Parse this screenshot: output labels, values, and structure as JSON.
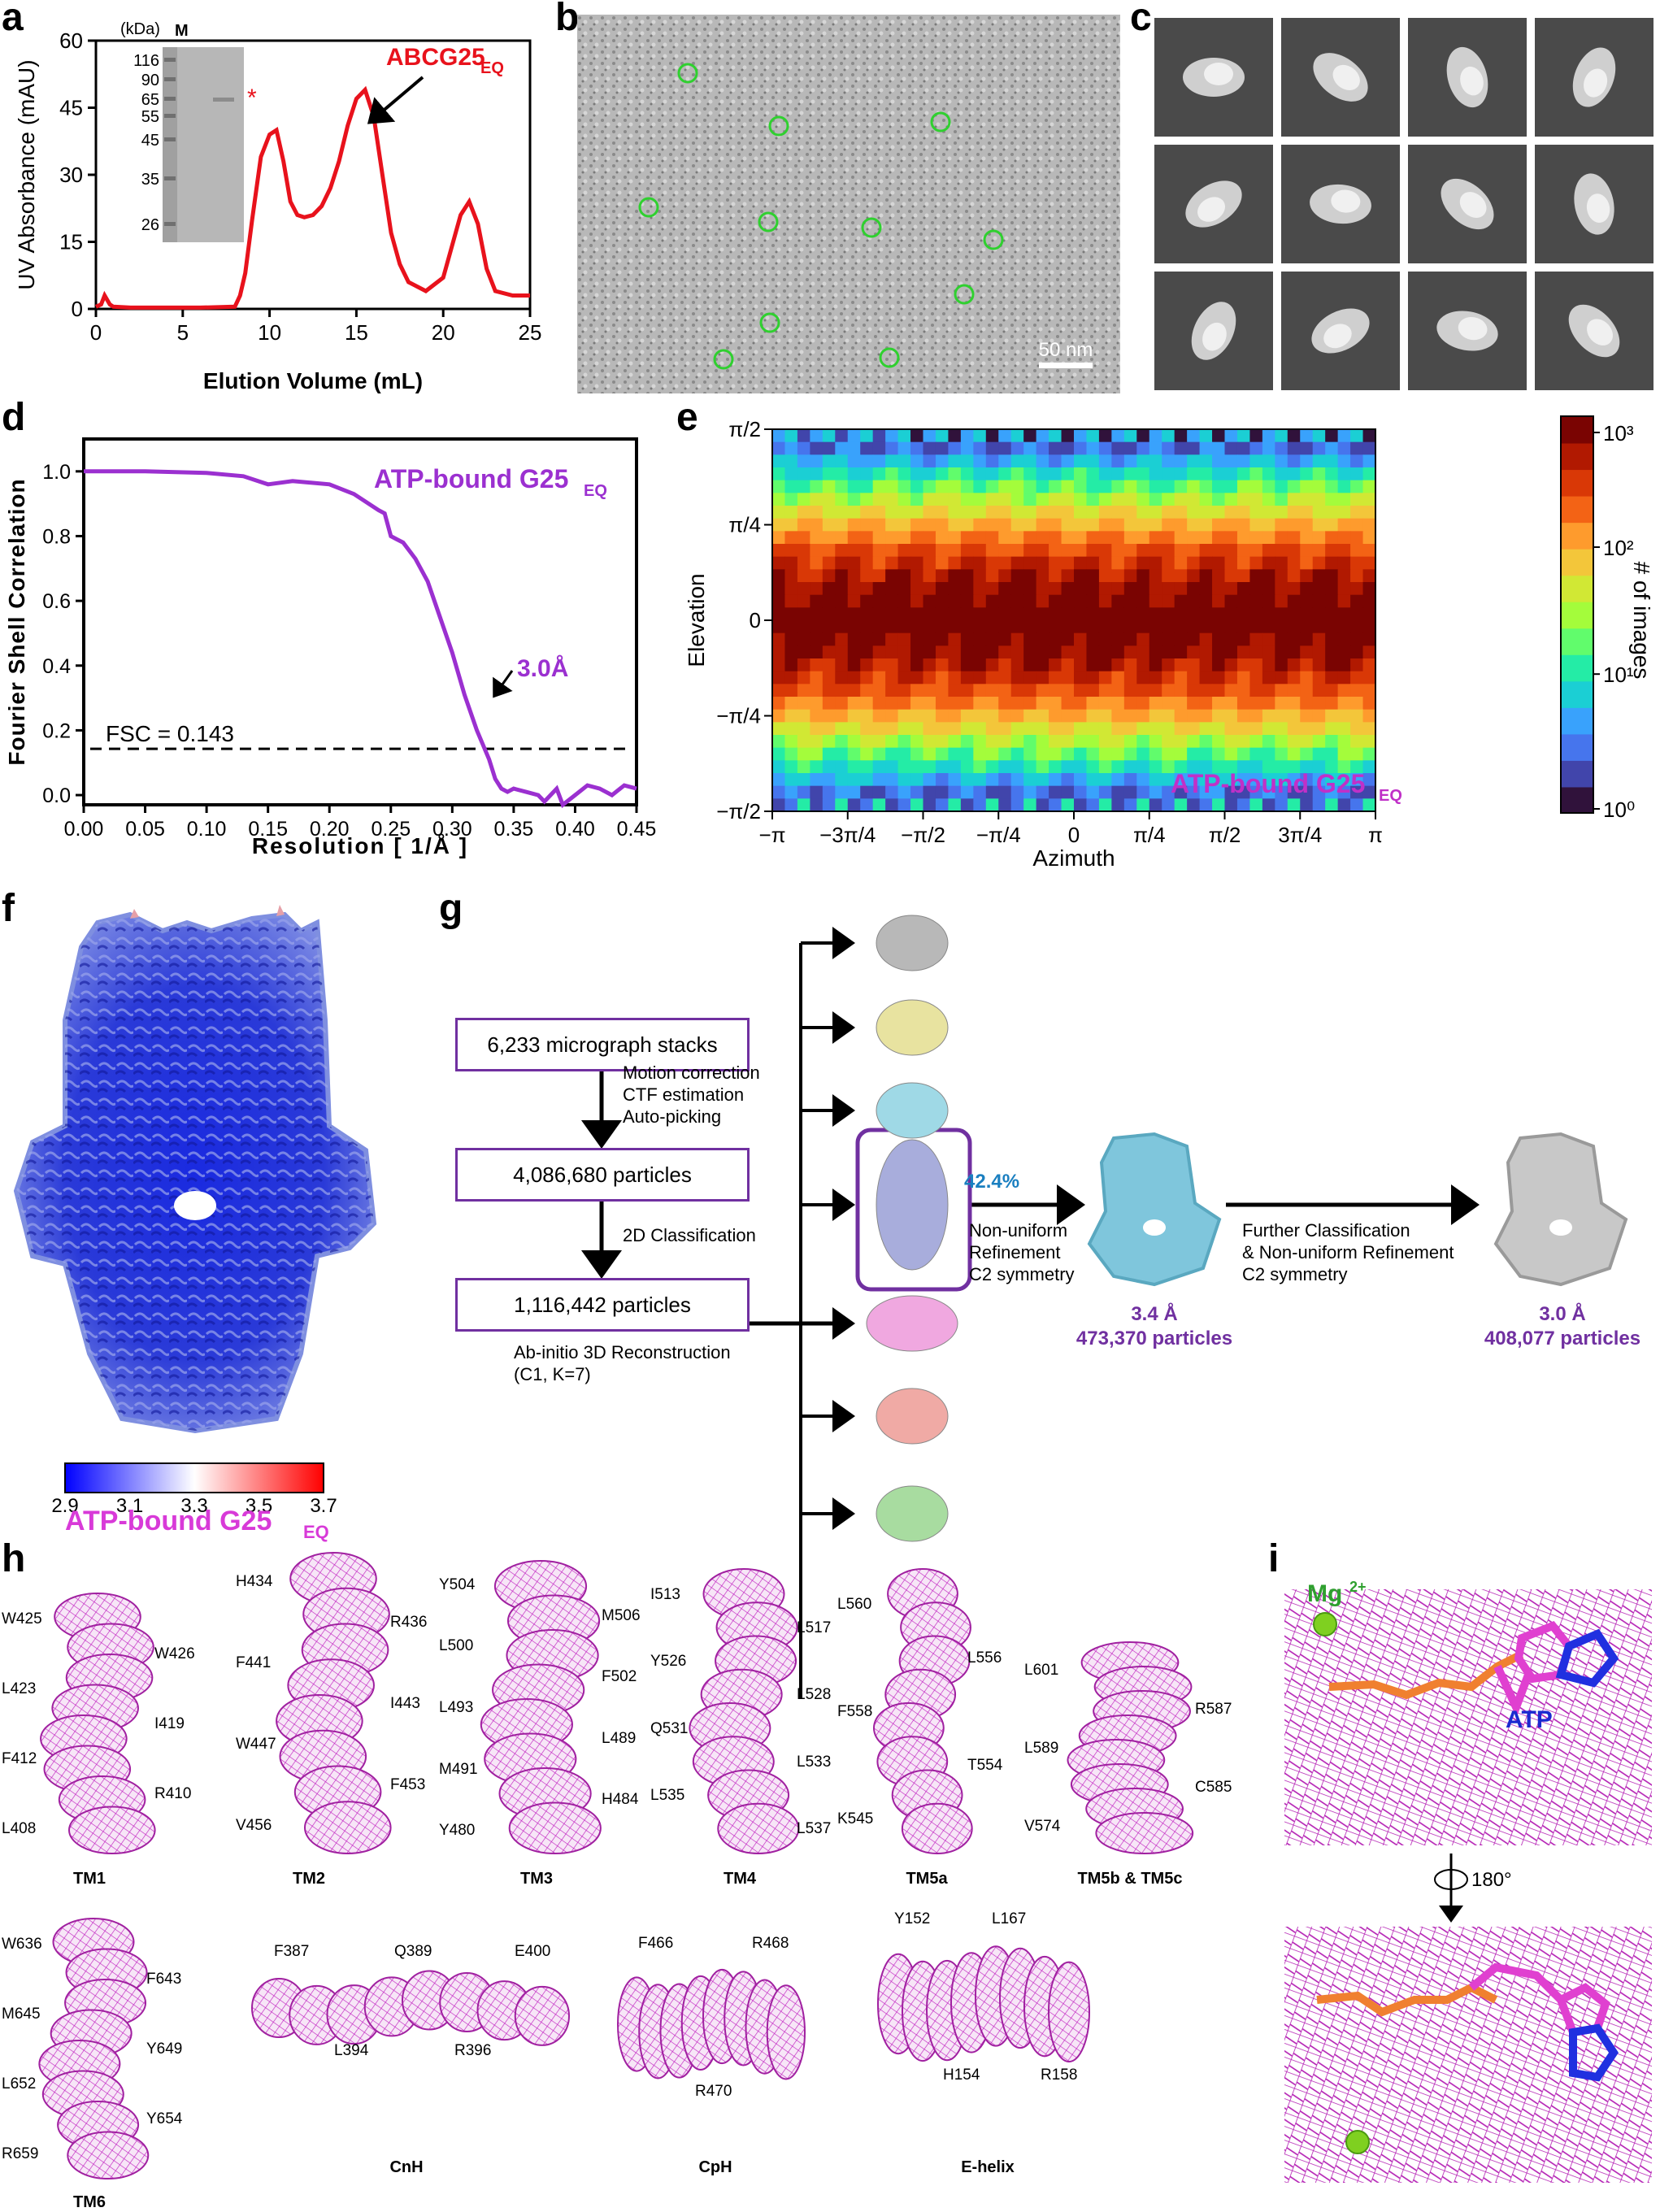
{
  "panels": [
    "a",
    "b",
    "c",
    "d",
    "e",
    "f",
    "g",
    "h",
    "i"
  ],
  "panel_a": {
    "chart_data": {
      "type": "line",
      "xlabel": "Elution Volume (mL)",
      "ylabel": "UV Absorbance (mAU)",
      "xlim": [
        0,
        25
      ],
      "ylim": [
        0,
        60
      ],
      "xticks": [
        "0",
        "5",
        "10",
        "15",
        "20",
        "25"
      ],
      "yticks": [
        "0",
        "15",
        "30",
        "45",
        "60"
      ],
      "series": [
        {
          "color": "#e8121c",
          "x": [
            0,
            0.3,
            0.5,
            0.8,
            1,
            2,
            4,
            6,
            8,
            8.3,
            8.6,
            9,
            9.5,
            10,
            10.4,
            10.8,
            11.2,
            11.6,
            12,
            12.5,
            13,
            13.5,
            14,
            14.5,
            15,
            15.5,
            16,
            16.5,
            17,
            17.5,
            18,
            19,
            20,
            20.5,
            21,
            21.5,
            22,
            22.5,
            23,
            24,
            25
          ],
          "y": [
            0.5,
            1,
            3,
            1,
            0.5,
            0.3,
            0.3,
            0.3,
            0.5,
            3,
            8,
            20,
            34,
            39,
            40,
            33,
            24,
            21,
            20.5,
            21,
            23,
            27,
            33,
            41,
            47,
            49,
            43,
            30,
            17,
            10,
            6,
            4,
            7,
            14,
            21,
            24,
            19,
            9,
            4,
            3,
            3
          ]
        }
      ],
      "annotation": "ABCG25",
      "annotation_sub": "EQ",
      "gel": {
        "unit": "(kDa)",
        "lane_label": "M",
        "markers": [
          "116",
          "90",
          "65",
          "55",
          "45",
          "35",
          "26"
        ],
        "star": "*"
      }
    }
  },
  "panel_b": {
    "scale_bar": "50 nm"
  },
  "panel_d": {
    "chart_data": {
      "type": "line",
      "xlabel": "Resolution [ 1/Å ]",
      "ylabel": "Fourier Shell Correlation",
      "xlim": [
        0,
        0.45
      ],
      "ylim": [
        -0.03,
        1.1
      ],
      "xticks": [
        "0.00",
        "0.05",
        "0.10",
        "0.15",
        "0.20",
        "0.25",
        "0.30",
        "0.35",
        "0.40",
        "0.45"
      ],
      "yticks": [
        "0.0",
        "0.2",
        "0.4",
        "0.6",
        "0.8",
        "1.0"
      ],
      "series": [
        {
          "name": "ATP-bound G25",
          "name_sub": "EQ",
          "color": "#9b30d0",
          "x": [
            0,
            0.05,
            0.1,
            0.13,
            0.15,
            0.17,
            0.2,
            0.22,
            0.24,
            0.245,
            0.25,
            0.255,
            0.26,
            0.27,
            0.28,
            0.29,
            0.3,
            0.31,
            0.32,
            0.33,
            0.335,
            0.34,
            0.345,
            0.35,
            0.36,
            0.37,
            0.375,
            0.38,
            0.385,
            0.39,
            0.4,
            0.41,
            0.42,
            0.43,
            0.44,
            0.45
          ],
          "y": [
            1.0,
            1.0,
            0.995,
            0.985,
            0.96,
            0.97,
            0.96,
            0.93,
            0.88,
            0.87,
            0.8,
            0.79,
            0.78,
            0.73,
            0.66,
            0.55,
            0.44,
            0.31,
            0.2,
            0.11,
            0.05,
            0.02,
            0.01,
            0.02,
            0.01,
            0.0,
            -0.02,
            0.0,
            0.02,
            -0.03,
            0.0,
            0.03,
            0.02,
            0.0,
            0.03,
            0.02
          ]
        }
      ],
      "threshold_label": "FSC = 0.143",
      "threshold": 0.143,
      "resolution_label": "3.0Å"
    }
  },
  "panel_e": {
    "chart_data": {
      "type": "heatmap",
      "xlabel": "Azimuth",
      "ylabel": "Elevation",
      "xticks": [
        "−π",
        "−3π/4",
        "−π/2",
        "−π/4",
        "0",
        "π/4",
        "π/2",
        "3π/4",
        "π"
      ],
      "yticks": [
        "−π/2",
        "−π/4",
        "0",
        "π/4",
        "π/2"
      ],
      "colorbar_label": "# of images",
      "colorbar_ticks": [
        "10⁰",
        "10¹",
        "10²",
        "10³"
      ],
      "scale": "log",
      "annotation": "ATP-bound G25",
      "annotation_sub": "EQ",
      "colors": [
        "#30123b",
        "#4145ab",
        "#4675ed",
        "#39a2fc",
        "#1bcfd4",
        "#24eca6",
        "#61fc6c",
        "#a4fc3b",
        "#d1e834",
        "#f3c63a",
        "#fe9b2d",
        "#f36315",
        "#d93806",
        "#b11901",
        "#7a0402"
      ]
    }
  },
  "panel_f": {
    "colorbar_ticks": [
      "2.9",
      "3.1",
      "3.3",
      "3.5",
      "3.7"
    ],
    "title": "ATP-bound G25",
    "title_sub": "EQ"
  },
  "panel_g": {
    "boxes": [
      "6,233 micrograph stacks",
      "4,086,680 particles",
      "1,116,442 particles"
    ],
    "step1": [
      "Motion correction",
      "CTF estimation",
      "Auto-picking"
    ],
    "step2": "2D Classification",
    "step3": [
      "Ab-initio 3D Reconstruction",
      "(C1, K=7)"
    ],
    "percent": "42.4%",
    "refine1": [
      "Non-uniform",
      "Refinement",
      "C2 symmetry"
    ],
    "refine2": [
      "Further Classification",
      "& Non-uniform Refinement",
      "C2 symmetry"
    ],
    "result1": [
      "3.4 Å",
      "473,370 particles"
    ],
    "result2": [
      "3.0 Å",
      "408,077 particles"
    ],
    "class_colors": [
      "#b8b8b8",
      "#e8e3a0",
      "#9fd9e6",
      "#a8addc",
      "#f0a8e0",
      "#f0aaa5",
      "#a8dca0"
    ]
  },
  "panel_h": {
    "helices": [
      {
        "name": "TM1",
        "residues": [
          "W425",
          "W426",
          "L423",
          "I419",
          "F412",
          "R410",
          "L408"
        ]
      },
      {
        "name": "TM2",
        "residues": [
          "H434",
          "R436",
          "F441",
          "I443",
          "W447",
          "F453",
          "V456"
        ]
      },
      {
        "name": "TM3",
        "residues": [
          "Y504",
          "M506",
          "L500",
          "F502",
          "L493",
          "L489",
          "M491",
          "H484",
          "Y480"
        ]
      },
      {
        "name": "TM4",
        "residues": [
          "I513",
          "L517",
          "Y526",
          "L528",
          "Q531",
          "L533",
          "L535",
          "L537"
        ]
      },
      {
        "name": "TM5a",
        "residues": [
          "L560",
          "L556",
          "F558",
          "T554",
          "K545"
        ]
      },
      {
        "name": "TM5b & TM5c",
        "residues": [
          "L601",
          "R587",
          "L589",
          "C585",
          "V574"
        ]
      },
      {
        "name": "TM6",
        "residues": [
          "W636",
          "F643",
          "M645",
          "Y649",
          "L652",
          "Y654",
          "R659"
        ]
      },
      {
        "name": "CnH",
        "residues": [
          "F387",
          "L394",
          "Q389",
          "R396",
          "E400"
        ]
      },
      {
        "name": "CpH",
        "residues": [
          "F466",
          "R470",
          "R468"
        ]
      },
      {
        "name": "E-helix",
        "residues": [
          "Y152",
          "H154",
          "L167",
          "R158"
        ]
      }
    ]
  },
  "panel_i": {
    "ion": "Mg",
    "ion_charge": "2+",
    "ligand": "ATP",
    "rotation": "180°"
  }
}
